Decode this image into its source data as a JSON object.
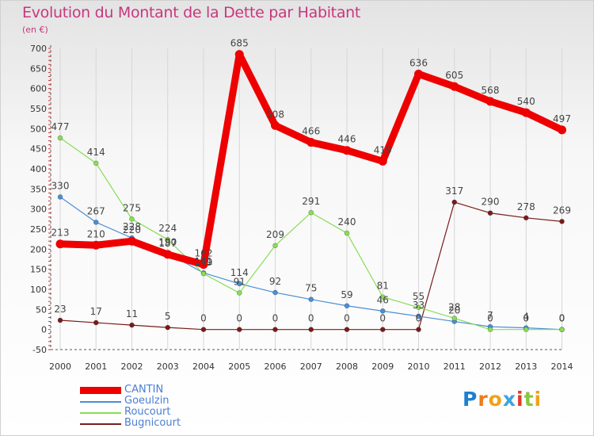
{
  "chart_data": {
    "type": "line",
    "title": "Evolution du Montant de la Dette par Habitant",
    "subtitle": "(en €)",
    "x": [
      "2000",
      "2001",
      "2002",
      "2003",
      "2004",
      "2005",
      "2006",
      "2007",
      "2008",
      "2009",
      "2010",
      "2011",
      "2012",
      "2013",
      "2014"
    ],
    "ylim": [
      -50,
      700
    ],
    "yticks": [
      -50,
      0,
      50,
      100,
      150,
      200,
      250,
      300,
      350,
      400,
      450,
      500,
      550,
      600,
      650,
      700
    ],
    "ytick_labels": [
      "-50",
      "0",
      "50",
      "100",
      "150",
      "200",
      "250",
      "300",
      "350",
      "400",
      "450",
      "500",
      "550",
      "600",
      "650",
      "700"
    ],
    "grid": "vertical",
    "legend_position": "bottom-left",
    "series": [
      {
        "name": "CANTIN",
        "color": "#ee0000",
        "values": [
          213,
          210,
          220,
          187,
          162,
          685,
          508,
          466,
          446,
          419,
          636,
          605,
          568,
          540,
          497
        ],
        "labels": [
          "213",
          "210",
          "220",
          "187",
          "162",
          "685",
          "508",
          "466",
          "446",
          "419",
          "636",
          "605",
          "568",
          "540",
          "497"
        ]
      },
      {
        "name": "Goeulzin",
        "color": "#4a8fd6",
        "values": [
          330,
          267,
          228,
          190,
          141,
          114,
          92,
          75,
          59,
          46,
          33,
          20,
          7,
          4,
          0
        ],
        "labels": [
          "330",
          "267",
          "228",
          "190",
          "141",
          "114",
          "92",
          "75",
          "59",
          "46",
          "33",
          "20",
          "7",
          "4",
          "0"
        ]
      },
      {
        "name": "Roucourt",
        "color": "#88dd55",
        "values": [
          477,
          414,
          275,
          224,
          139,
          91,
          209,
          291,
          240,
          81,
          55,
          28,
          0,
          0,
          0
        ],
        "labels": [
          "477",
          "414",
          "275",
          "224",
          "139",
          "91",
          "209",
          "291",
          "240",
          "81",
          "55",
          "28",
          "0",
          "0",
          "0"
        ]
      },
      {
        "name": "Bugnicourt",
        "color": "#7a1c1c",
        "values": [
          23,
          17,
          11,
          5,
          0,
          0,
          0,
          0,
          0,
          0,
          0,
          317,
          290,
          278,
          269
        ],
        "labels": [
          "23",
          "17",
          "11",
          "5",
          "0",
          "0",
          "0",
          "0",
          "0",
          "0",
          "0",
          "317",
          "290",
          "278",
          "269"
        ]
      }
    ]
  },
  "logo": {
    "letters": [
      {
        "ch": "P",
        "color": "#1e7fcf"
      },
      {
        "ch": "r",
        "color": "#f07a1a"
      },
      {
        "ch": "o",
        "color": "#f0a21a"
      },
      {
        "ch": "x",
        "color": "#3aa4e0"
      },
      {
        "ch": "i",
        "color": "#e23a2a"
      },
      {
        "ch": "t",
        "color": "#8cc63f"
      },
      {
        "ch": "i",
        "color": "#f0a21a"
      }
    ]
  }
}
